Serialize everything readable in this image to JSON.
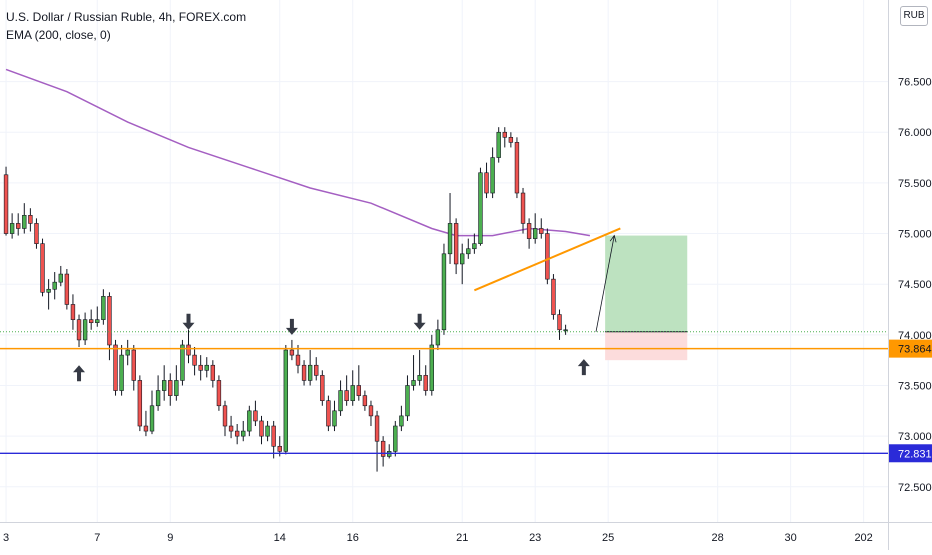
{
  "chart_data": {
    "type": "candlestick",
    "title": "U.S. Dollar / Russian Ruble, 4h, FOREX.com",
    "indicator": "EMA (200, close, 0)",
    "currency": "RUB",
    "ylim": [
      72.35,
      76.95
    ],
    "y_ticks": [
      72.5,
      73.0,
      73.5,
      74.0,
      74.5,
      75.0,
      75.5,
      76.0,
      76.5
    ],
    "y_tick_labels": [
      "72.500",
      "73.000",
      "73.500",
      "74.000",
      "74.500",
      "75.000",
      "75.500",
      "76.000",
      "76.500"
    ],
    "x_ticks": [
      {
        "label": "3",
        "bar": 0
      },
      {
        "label": "7",
        "bar": 15
      },
      {
        "label": "9",
        "bar": 27
      },
      {
        "label": "14",
        "bar": 45
      },
      {
        "label": "16",
        "bar": 57
      },
      {
        "label": "21",
        "bar": 75
      },
      {
        "label": "23",
        "bar": 87
      },
      {
        "label": "25",
        "bar": 99
      },
      {
        "label": "28",
        "bar": 117
      },
      {
        "label": "30",
        "bar": 129
      },
      {
        "label": "202",
        "bar": 141
      }
    ],
    "bar_count": 146,
    "candles": [
      [
        75.58,
        75.0,
        75.66,
        74.98
      ],
      [
        75.0,
        75.1,
        75.2,
        74.95
      ],
      [
        75.1,
        75.05,
        75.2,
        74.98
      ],
      [
        75.05,
        75.18,
        75.3,
        75.0
      ],
      [
        75.18,
        75.1,
        75.25,
        75.02
      ],
      [
        75.1,
        74.9,
        75.15,
        74.85
      ],
      [
        74.9,
        74.42,
        74.95,
        74.38
      ],
      [
        74.42,
        74.45,
        74.55,
        74.25
      ],
      [
        74.45,
        74.52,
        74.62,
        74.35
      ],
      [
        74.52,
        74.6,
        74.68,
        74.48
      ],
      [
        74.6,
        74.3,
        74.65,
        74.25
      ],
      [
        74.3,
        74.15,
        74.4,
        74.05
      ],
      [
        74.15,
        73.95,
        74.2,
        73.88
      ],
      [
        73.95,
        74.15,
        74.22,
        73.9
      ],
      [
        74.15,
        74.12,
        74.25,
        74.05
      ],
      [
        74.12,
        74.15,
        74.28,
        74.08
      ],
      [
        74.15,
        74.38,
        74.45,
        74.1
      ],
      [
        74.38,
        73.9,
        74.42,
        73.75
      ],
      [
        73.9,
        73.45,
        73.95,
        73.4
      ],
      [
        73.45,
        73.8,
        73.9,
        73.4
      ],
      [
        73.8,
        73.85,
        73.95,
        73.7
      ],
      [
        73.85,
        73.55,
        73.9,
        73.45
      ],
      [
        73.55,
        73.1,
        73.6,
        73.05
      ],
      [
        73.1,
        73.05,
        73.25,
        73.0
      ],
      [
        73.05,
        73.3,
        73.45,
        73.02
      ],
      [
        73.3,
        73.45,
        73.6,
        73.25
      ],
      [
        73.45,
        73.55,
        73.7,
        73.35
      ],
      [
        73.55,
        73.4,
        73.62,
        73.3
      ],
      [
        73.4,
        73.55,
        73.7,
        73.35
      ],
      [
        73.55,
        73.9,
        73.95,
        73.5
      ],
      [
        73.9,
        73.8,
        74.05,
        73.72
      ],
      [
        73.8,
        73.7,
        73.88,
        73.6
      ],
      [
        73.7,
        73.65,
        73.8,
        73.55
      ],
      [
        73.65,
        73.7,
        73.78,
        73.58
      ],
      [
        73.7,
        73.55,
        73.75,
        73.48
      ],
      [
        73.55,
        73.3,
        73.6,
        73.25
      ],
      [
        73.3,
        73.1,
        73.35,
        73.0
      ],
      [
        73.1,
        73.05,
        73.2,
        72.98
      ],
      [
        73.05,
        73.0,
        73.12,
        72.92
      ],
      [
        73.0,
        73.05,
        73.15,
        72.95
      ],
      [
        73.05,
        73.25,
        73.3,
        73.0
      ],
      [
        73.25,
        73.15,
        73.35,
        73.1
      ],
      [
        73.15,
        73.0,
        73.2,
        72.92
      ],
      [
        73.0,
        73.1,
        73.15,
        72.95
      ],
      [
        73.1,
        72.9,
        73.15,
        72.78
      ],
      [
        72.9,
        72.85,
        73.0,
        72.8
      ],
      [
        72.85,
        73.85,
        73.9,
        72.82
      ],
      [
        73.85,
        73.8,
        73.95,
        73.75
      ],
      [
        73.8,
        73.7,
        73.9,
        73.62
      ],
      [
        73.7,
        73.55,
        73.75,
        73.5
      ],
      [
        73.55,
        73.7,
        73.85,
        73.5
      ],
      [
        73.7,
        73.6,
        73.78,
        73.55
      ],
      [
        73.6,
        73.35,
        73.65,
        73.3
      ],
      [
        73.35,
        73.1,
        73.4,
        73.05
      ],
      [
        73.1,
        73.25,
        73.35,
        73.05
      ],
      [
        73.25,
        73.45,
        73.55,
        73.2
      ],
      [
        73.45,
        73.35,
        73.6,
        73.3
      ],
      [
        73.35,
        73.5,
        73.65,
        73.3
      ],
      [
        73.5,
        73.4,
        73.7,
        73.35
      ],
      [
        73.4,
        73.3,
        73.45,
        73.25
      ],
      [
        73.3,
        73.2,
        73.35,
        73.1
      ],
      [
        73.2,
        72.95,
        73.25,
        72.65
      ],
      [
        72.95,
        72.8,
        73.0,
        72.7
      ],
      [
        72.8,
        72.85,
        72.92,
        72.78
      ],
      [
        72.85,
        73.1,
        73.15,
        72.8
      ],
      [
        73.1,
        73.2,
        73.3,
        73.05
      ],
      [
        73.2,
        73.5,
        73.6,
        73.15
      ],
      [
        73.5,
        73.55,
        73.8,
        73.45
      ],
      [
        73.55,
        73.6,
        73.85,
        73.5
      ],
      [
        73.6,
        73.45,
        73.7,
        73.4
      ],
      [
        73.45,
        73.9,
        74.0,
        73.4
      ],
      [
        73.9,
        74.05,
        74.15,
        73.85
      ],
      [
        74.05,
        74.8,
        74.9,
        74.0
      ],
      [
        74.8,
        75.1,
        75.4,
        74.7
      ],
      [
        75.1,
        74.7,
        75.15,
        74.6
      ],
      [
        74.7,
        74.8,
        74.9,
        74.5
      ],
      [
        74.8,
        74.85,
        74.95,
        74.75
      ],
      [
        74.85,
        74.9,
        75.0,
        74.8
      ],
      [
        74.9,
        75.6,
        75.65,
        74.88
      ],
      [
        75.6,
        75.4,
        75.7,
        75.35
      ],
      [
        75.4,
        75.75,
        75.85,
        75.35
      ],
      [
        75.75,
        76.0,
        76.05,
        75.7
      ],
      [
        76.0,
        75.95,
        76.05,
        75.85
      ],
      [
        75.95,
        75.9,
        76.0,
        75.85
      ],
      [
        75.9,
        75.4,
        75.95,
        75.35
      ],
      [
        75.4,
        75.1,
        75.45,
        75.0
      ],
      [
        75.1,
        74.95,
        75.15,
        74.85
      ],
      [
        74.95,
        75.05,
        75.2,
        74.9
      ],
      [
        75.05,
        75.0,
        75.15,
        74.95
      ],
      [
        75.0,
        74.55,
        75.05,
        74.5
      ],
      [
        74.55,
        74.2,
        74.6,
        74.15
      ],
      [
        74.2,
        74.05,
        74.25,
        73.95
      ],
      [
        74.05,
        74.05,
        74.1,
        74.0
      ]
    ],
    "candle_bars": [
      0,
      1,
      2,
      3,
      4,
      5,
      6,
      7,
      8,
      9,
      10,
      11,
      12,
      13,
      14,
      15,
      16,
      17,
      18,
      19,
      20,
      21,
      22,
      23,
      24,
      25,
      26,
      27,
      28,
      29,
      30,
      31,
      32,
      33,
      34,
      35,
      36,
      37,
      38,
      39,
      40,
      41,
      42,
      43,
      44,
      45,
      46,
      47,
      48,
      49,
      50,
      51,
      52,
      53,
      54,
      55,
      56,
      57,
      58,
      59,
      60,
      61,
      62,
      63,
      64,
      65,
      66,
      67,
      68,
      69,
      70,
      71,
      72,
      73,
      74,
      75,
      76,
      77,
      78,
      79,
      80,
      81,
      82,
      83,
      84,
      85,
      86,
      87,
      88,
      89,
      90,
      91,
      92
    ],
    "ema_200": {
      "bars": [
        0,
        10,
        20,
        30,
        40,
        50,
        60,
        70,
        74,
        80,
        86,
        92,
        96
      ],
      "values": [
        76.62,
        76.4,
        76.1,
        75.85,
        75.65,
        75.45,
        75.3,
        75.05,
        74.98,
        74.98,
        75.05,
        75.02,
        74.98
      ]
    },
    "support_line": {
      "price": 73.864,
      "label": "73.864",
      "color": "#ff9800"
    },
    "lower_line": {
      "price": 72.831,
      "label": "72.831",
      "color": "#2a2ad8"
    },
    "current_price": 74.03,
    "trendline": {
      "bar1": 77,
      "price1": 74.44,
      "bar2": 101,
      "price2": 75.05,
      "color": "#ff9800"
    },
    "position": {
      "entry": 74.03,
      "target": 74.98,
      "stop": 73.75,
      "bar_start": 98.5,
      "bar_end": 112,
      "target_color": "#bde2c0",
      "stop_color": "#fcdcdc"
    },
    "projection_arrow": {
      "bar1": 97,
      "price1": 74.03,
      "bar2": 100,
      "price2": 74.98
    },
    "arrows": [
      {
        "bar": 12,
        "direction": "up",
        "price": 73.7
      },
      {
        "bar": 30,
        "direction": "down",
        "price": 74.05
      },
      {
        "bar": 47,
        "direction": "down",
        "price": 74.0
      },
      {
        "bar": 68,
        "direction": "down",
        "price": 74.05
      },
      {
        "bar": 95,
        "direction": "up",
        "price": 73.76
      }
    ],
    "colors": {
      "up": "#4caf50",
      "down": "#ef5350",
      "ema": "#a45fc2",
      "grid": "#f0f3fa",
      "axis_text": "#131722"
    }
  }
}
